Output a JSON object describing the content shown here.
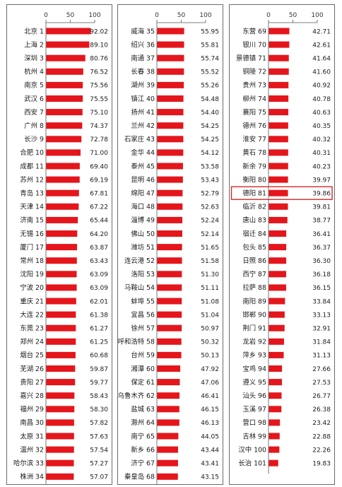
{
  "chart_data": {
    "type": "bar",
    "orientation": "horizontal",
    "xlim": [
      0,
      100
    ],
    "ticks": [
      "0",
      "50",
      "100"
    ],
    "highlighted": "德阳 81",
    "panels": [
      {
        "categories": [
          "北京 1",
          "上海 2",
          "深圳 3",
          "杭州 4",
          "南京 5",
          "武汉 6",
          "西安 7",
          "广州 8",
          "长沙 9",
          "合肥 10",
          "成都 11",
          "苏州 12",
          "青岛 13",
          "天津 14",
          "济南 15",
          "无锡 16",
          "厦门 17",
          "常州 18",
          "沈阳 19",
          "宁波 20",
          "重庆 21",
          "大连 22",
          "东莞 23",
          "郑州 24",
          "烟台 25",
          "芜湖 26",
          "贵阳 27",
          "嘉兴 28",
          "福州 29",
          "南昌 30",
          "太原 31",
          "温州 32",
          "哈尔滨 33",
          "株洲 34"
        ],
        "values": [
          "92.02",
          "89.10",
          "80.76",
          "76.52",
          "75.56",
          "75.55",
          "75.10",
          "74.37",
          "72.78",
          "71.00",
          "69.40",
          "69.19",
          "67.81",
          "67.22",
          "65.44",
          "64.20",
          "63.87",
          "63.43",
          "63.09",
          "63.09",
          "62.01",
          "61.38",
          "61.27",
          "61.25",
          "60.68",
          "59.87",
          "59.77",
          "58.43",
          "58.30",
          "57.82",
          "57.63",
          "57.54",
          "57.27",
          "57.07"
        ]
      },
      {
        "categories": [
          "威海 35",
          "绍兴 36",
          "南通 37",
          "长春 38",
          "湖州 39",
          "镇江 40",
          "扬州 41",
          "兰州 42",
          "石家庄 43",
          "金华 44",
          "泰州 45",
          "昆明 46",
          "绵阳 47",
          "海口 48",
          "淄博 49",
          "佛山 50",
          "潍坊 51",
          "连云港 52",
          "洛阳 53",
          "马鞍山 54",
          "蚌埠 55",
          "宜昌 56",
          "徐州 57",
          "呼和浩特 58",
          "台州 59",
          "湘潭 60",
          "保定 61",
          "乌鲁木齐 62",
          "盐城 63",
          "滁州 64",
          "南宁 65",
          "新乡 66",
          "济宁 67",
          "秦皇岛 68"
        ],
        "values": [
          "55.95",
          "55.81",
          "55.74",
          "55.52",
          "55.26",
          "54.48",
          "54.40",
          "54.25",
          "54.25",
          "54.12",
          "53.58",
          "53.43",
          "52.79",
          "52.63",
          "52.24",
          "52.14",
          "51.65",
          "51.58",
          "51.30",
          "51.11",
          "51.08",
          "51.04",
          "50.97",
          "50.32",
          "50.13",
          "47.92",
          "47.06",
          "46.41",
          "46.15",
          "46.13",
          "44.05",
          "43.44",
          "43.41",
          "43.15"
        ]
      },
      {
        "categories": [
          "东营 69",
          "银川 70",
          "景德镇 71",
          "铜陵 72",
          "贵州 73",
          "柳州 74",
          "襄阳 75",
          "德州 76",
          "淮安 77",
          "黄石 78",
          "新余 79",
          "衡阳 80",
          "德阳 81",
          "临沂 82",
          "唐山 83",
          "宿迁 84",
          "包头 85",
          "日照 86",
          "西宁 87",
          "拉萨 88",
          "南阳 89",
          "邯郸 90",
          "荆门 91",
          "龙岩 92",
          "萍乡 93",
          "宝鸡 94",
          "遵义 95",
          "汕头 96",
          "玉溪 97",
          "营口 98",
          "吉林 99",
          "汉中 100",
          "长治 101"
        ],
        "values": [
          "42.71",
          "42.61",
          "41.64",
          "41.60",
          "40.92",
          "40.78",
          "40.63",
          "40.35",
          "40.32",
          "40.31",
          "40.23",
          "39.97",
          "39.86",
          "39.81",
          "38.77",
          "36.41",
          "36.37",
          "36.30",
          "36.18",
          "36.15",
          "33.84",
          "33.13",
          "32.91",
          "31.84",
          "31.13",
          "27.66",
          "27.53",
          "26.77",
          "26.38",
          "23.42",
          "22.88",
          "22.26",
          "19.83"
        ]
      }
    ]
  }
}
